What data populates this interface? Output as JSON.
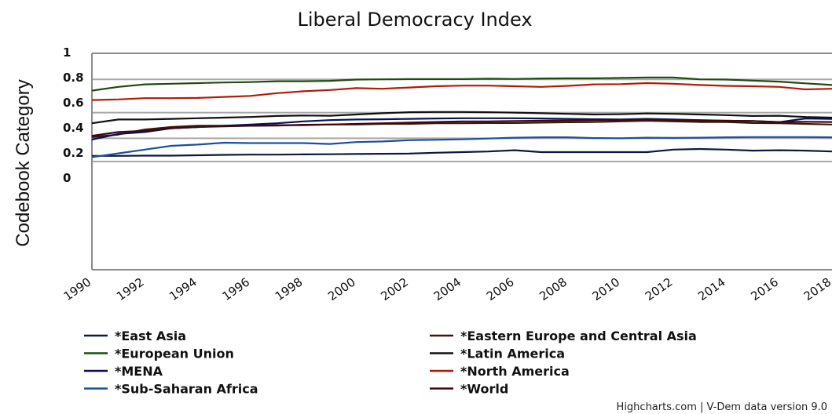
{
  "chart_data": {
    "type": "line",
    "title": "Liberal Democracy Index",
    "xlabel": "",
    "ylabel": "Codebook Category",
    "xlim": [
      1990,
      2018
    ],
    "ylim": [
      -0.55,
      1.1
    ],
    "y_ticks": [
      {
        "value": 1,
        "label": "1"
      },
      {
        "value": 0.8,
        "label": "0.8"
      },
      {
        "value": 0.6,
        "label": "0.6"
      },
      {
        "value": 0.4,
        "label": "0.4"
      },
      {
        "value": 0.2,
        "label": "0.2"
      },
      {
        "value": 0,
        "label": "0"
      }
    ],
    "x_ticks": [
      "1990",
      "1992",
      "1994",
      "1996",
      "1998",
      "2000",
      "2002",
      "2004",
      "2006",
      "2008",
      "2010",
      "2012",
      "2014",
      "2016",
      "2018"
    ],
    "legend_position": "bottom",
    "series": [
      {
        "name": "*East Asia",
        "color": "#0b1a3a",
        "values": [
          0.17,
          0.17,
          0.172,
          0.172,
          0.175,
          0.178,
          0.18,
          0.18,
          0.182,
          0.183,
          0.185,
          0.187,
          0.188,
          0.195,
          0.2,
          0.205,
          0.215,
          0.2,
          0.2,
          0.2,
          0.2,
          0.2,
          0.22,
          0.225,
          0.22,
          0.212,
          0.215,
          0.212,
          0.205
        ]
      },
      {
        "name": "*Eastern Europe and Central Asia",
        "color": "#3a1a0a",
        "values": [
          0.32,
          0.34,
          0.38,
          0.4,
          0.41,
          0.41,
          0.41,
          0.415,
          0.415,
          0.42,
          0.42,
          0.425,
          0.425,
          0.43,
          0.43,
          0.432,
          0.432,
          0.435,
          0.438,
          0.44,
          0.445,
          0.45,
          0.445,
          0.44,
          0.44,
          0.432,
          0.43,
          0.425,
          0.42
        ]
      },
      {
        "name": "*European Union",
        "color": "#1f4a12",
        "values": [
          0.69,
          0.72,
          0.74,
          0.745,
          0.75,
          0.755,
          0.758,
          0.765,
          0.765,
          0.768,
          0.778,
          0.78,
          0.782,
          0.782,
          0.782,
          0.785,
          0.783,
          0.787,
          0.788,
          0.788,
          0.792,
          0.795,
          0.795,
          0.78,
          0.778,
          0.77,
          0.762,
          0.748,
          0.735
        ]
      },
      {
        "name": "*Latin America",
        "color": "#111111",
        "values": [
          0.43,
          0.46,
          0.46,
          0.465,
          0.47,
          0.475,
          0.48,
          0.488,
          0.492,
          0.49,
          0.5,
          0.51,
          0.518,
          0.52,
          0.52,
          0.518,
          0.515,
          0.51,
          0.505,
          0.5,
          0.502,
          0.508,
          0.505,
          0.5,
          0.495,
          0.488,
          0.49,
          0.48,
          0.475
        ]
      },
      {
        "name": "*MENA",
        "color": "#0a1250",
        "values": [
          0.3,
          0.345,
          0.36,
          0.39,
          0.4,
          0.41,
          0.42,
          0.43,
          0.445,
          0.455,
          0.46,
          0.462,
          0.465,
          0.468,
          0.47,
          0.47,
          0.47,
          0.468,
          0.465,
          0.462,
          0.46,
          0.465,
          0.46,
          0.455,
          0.45,
          0.448,
          0.438,
          0.468,
          0.465
        ]
      },
      {
        "name": "*North America",
        "color": "#b01a08",
        "values": [
          0.615,
          0.62,
          0.63,
          0.63,
          0.632,
          0.64,
          0.648,
          0.67,
          0.685,
          0.695,
          0.71,
          0.705,
          0.715,
          0.725,
          0.73,
          0.73,
          0.725,
          0.72,
          0.728,
          0.74,
          0.742,
          0.75,
          0.745,
          0.735,
          0.728,
          0.725,
          0.72,
          0.7,
          0.705
        ]
      },
      {
        "name": "*Sub-Saharan Africa",
        "color": "#1f4f9a",
        "values": [
          0.16,
          0.19,
          0.22,
          0.25,
          0.26,
          0.275,
          0.272,
          0.272,
          0.272,
          0.265,
          0.28,
          0.285,
          0.295,
          0.298,
          0.302,
          0.308,
          0.315,
          0.318,
          0.318,
          0.312,
          0.31,
          0.315,
          0.313,
          0.315,
          0.318,
          0.32,
          0.32,
          0.32,
          0.318
        ]
      },
      {
        "name": "*World",
        "color": "#3a0a10",
        "values": [
          0.33,
          0.36,
          0.37,
          0.39,
          0.4,
          0.405,
          0.41,
          0.412,
          0.418,
          0.42,
          0.425,
          0.43,
          0.435,
          0.44,
          0.445,
          0.445,
          0.448,
          0.45,
          0.452,
          0.455,
          0.455,
          0.458,
          0.455,
          0.452,
          0.45,
          0.448,
          0.44,
          0.442,
          0.44
        ]
      }
    ],
    "band_lines": [
      0.78,
      0.515,
      0.31,
      0.125
    ]
  },
  "credits": "Highcharts.com | V-Dem data version 9.0"
}
